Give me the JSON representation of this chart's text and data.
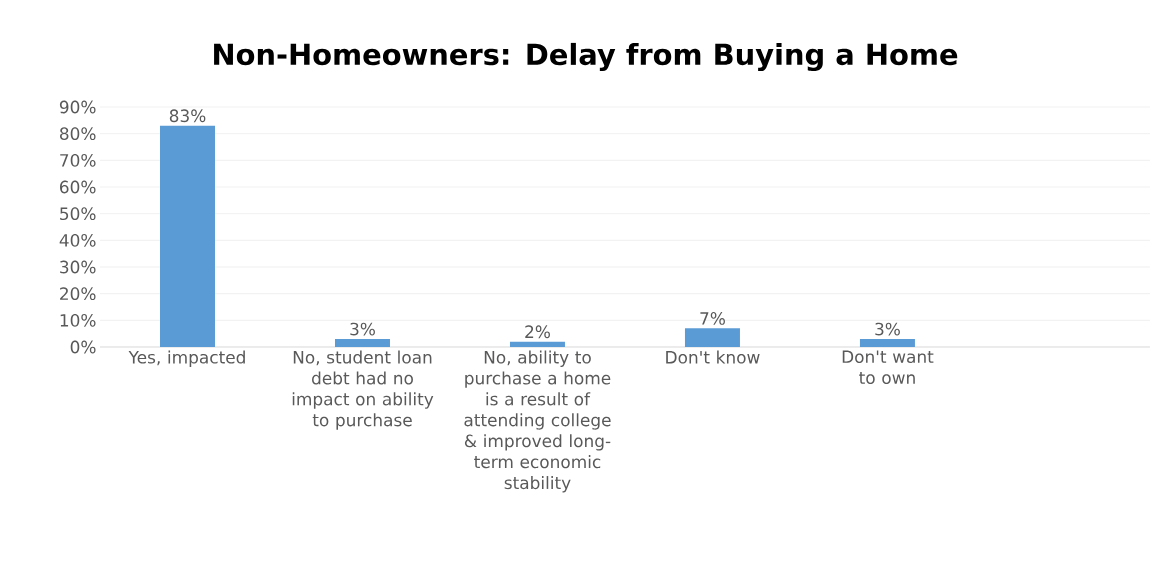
{
  "chart_data": {
    "type": "bar",
    "title": "Non-Homeowners: Delay from Buying a Home",
    "categories": [
      "Yes, impacted",
      "No, student loan debt had no impact on ability to purchase",
      "No, ability to purchase a home is a result of attending college & improved long-term economic stability",
      "Don't know",
      "Don't want to own",
      null
    ],
    "values": [
      83,
      3,
      2,
      7,
      3,
      null
    ],
    "value_labels": [
      "83%",
      "3%",
      "2%",
      "7%",
      "3%",
      null
    ],
    "color": "#5b9bd5",
    "ylim": [
      0,
      90
    ],
    "yticks": [
      {
        "value": 0,
        "label": "0%"
      },
      {
        "value": 10,
        "label": "10%"
      },
      {
        "value": 20,
        "label": "20%"
      },
      {
        "value": 30,
        "label": "30%"
      },
      {
        "value": 40,
        "label": "40%"
      },
      {
        "value": 50,
        "label": "50%"
      },
      {
        "value": 60,
        "label": "60%"
      },
      {
        "value": 70,
        "label": "70%"
      },
      {
        "value": 80,
        "label": "80%"
      },
      {
        "value": 90,
        "label": "90%"
      }
    ],
    "grid": "y"
  }
}
